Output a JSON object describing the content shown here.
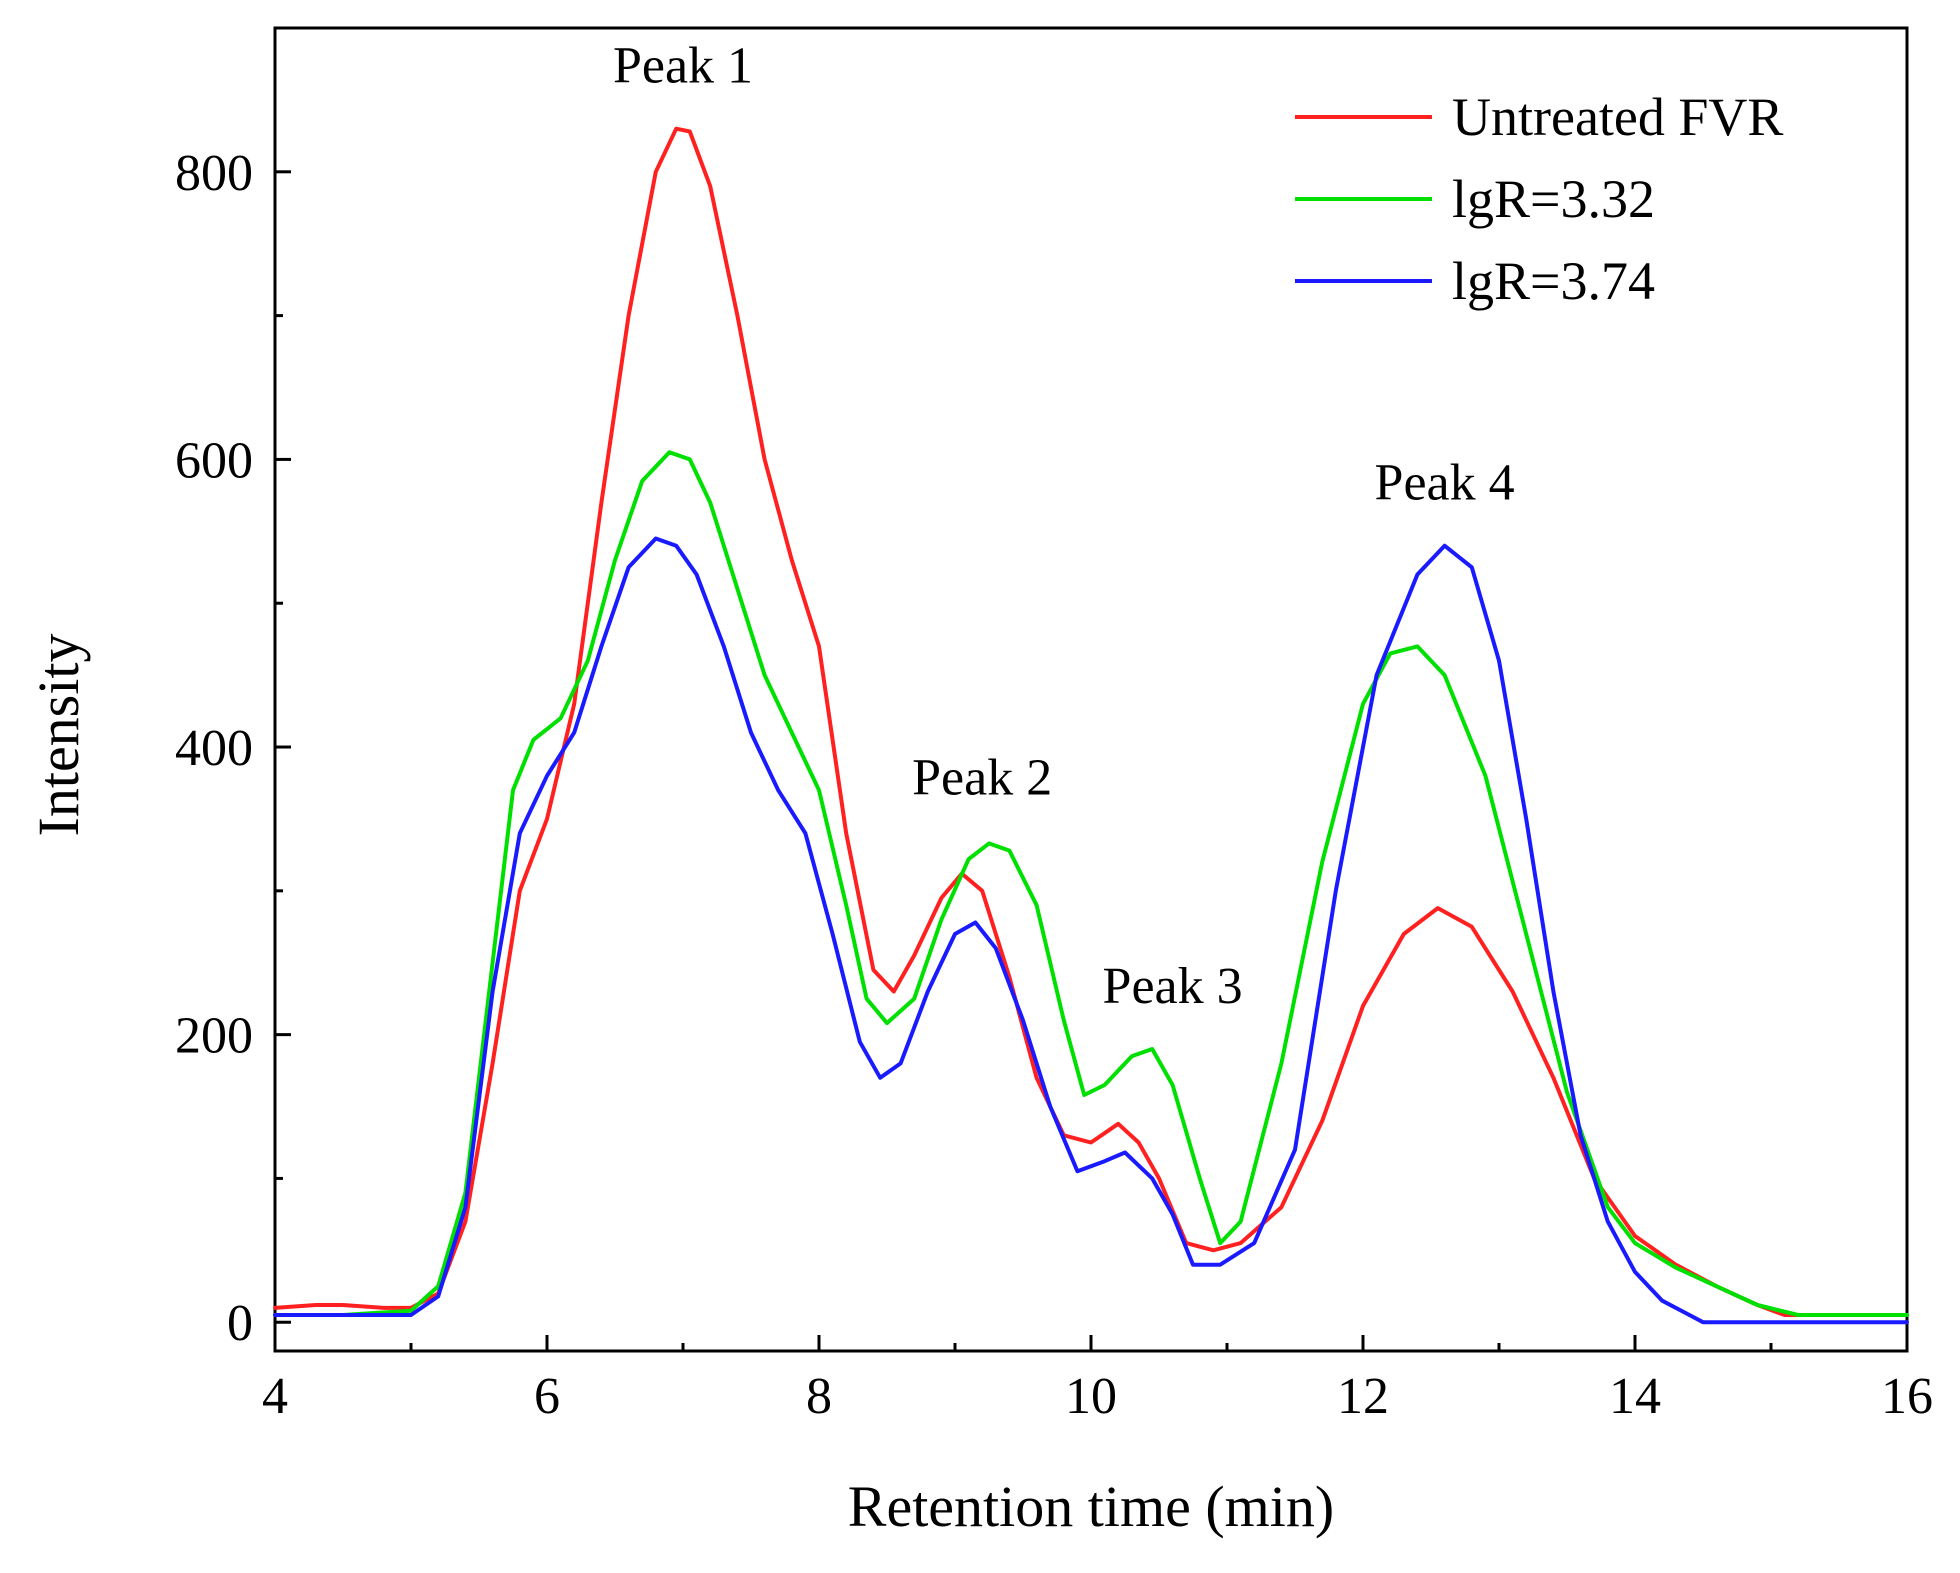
{
  "chart_data": {
    "type": "line",
    "title": "",
    "xlabel": "Retention time (min)",
    "ylabel": "Intensity",
    "xlim": [
      4,
      16
    ],
    "ylim": [
      -20,
      900
    ],
    "x_ticks": [
      4,
      6,
      8,
      10,
      12,
      14,
      16
    ],
    "y_ticks": [
      0,
      200,
      400,
      600,
      800
    ],
    "grid": false,
    "legend_position": "top-right",
    "series": [
      {
        "name": "Untreated FVR",
        "color": "#ff2020",
        "points": [
          [
            4.0,
            10
          ],
          [
            4.3,
            12
          ],
          [
            4.5,
            12
          ],
          [
            4.8,
            10
          ],
          [
            5.0,
            10
          ],
          [
            5.2,
            20
          ],
          [
            5.4,
            70
          ],
          [
            5.6,
            180
          ],
          [
            5.8,
            300
          ],
          [
            6.0,
            350
          ],
          [
            6.2,
            430
          ],
          [
            6.4,
            570
          ],
          [
            6.6,
            700
          ],
          [
            6.8,
            800
          ],
          [
            6.95,
            830
          ],
          [
            7.05,
            828
          ],
          [
            7.2,
            790
          ],
          [
            7.4,
            700
          ],
          [
            7.6,
            600
          ],
          [
            7.8,
            530
          ],
          [
            8.0,
            470
          ],
          [
            8.2,
            340
          ],
          [
            8.4,
            245
          ],
          [
            8.55,
            230
          ],
          [
            8.7,
            255
          ],
          [
            8.9,
            295
          ],
          [
            9.05,
            312
          ],
          [
            9.2,
            300
          ],
          [
            9.4,
            240
          ],
          [
            9.6,
            170
          ],
          [
            9.8,
            130
          ],
          [
            10.0,
            125
          ],
          [
            10.2,
            138
          ],
          [
            10.35,
            125
          ],
          [
            10.5,
            100
          ],
          [
            10.7,
            55
          ],
          [
            10.9,
            50
          ],
          [
            11.1,
            55
          ],
          [
            11.4,
            80
          ],
          [
            11.7,
            140
          ],
          [
            12.0,
            220
          ],
          [
            12.3,
            270
          ],
          [
            12.55,
            288
          ],
          [
            12.8,
            275
          ],
          [
            13.1,
            230
          ],
          [
            13.4,
            170
          ],
          [
            13.7,
            100
          ],
          [
            14.0,
            60
          ],
          [
            14.3,
            40
          ],
          [
            14.6,
            25
          ],
          [
            14.9,
            12
          ],
          [
            15.1,
            5
          ],
          [
            15.5,
            5
          ],
          [
            16.0,
            5
          ]
        ]
      },
      {
        "name": "lgR=3.32",
        "color": "#00e000",
        "points": [
          [
            4.0,
            5
          ],
          [
            4.5,
            5
          ],
          [
            5.0,
            8
          ],
          [
            5.2,
            25
          ],
          [
            5.4,
            90
          ],
          [
            5.6,
            250
          ],
          [
            5.75,
            370
          ],
          [
            5.9,
            405
          ],
          [
            6.1,
            420
          ],
          [
            6.3,
            460
          ],
          [
            6.5,
            530
          ],
          [
            6.7,
            585
          ],
          [
            6.9,
            605
          ],
          [
            7.05,
            600
          ],
          [
            7.2,
            570
          ],
          [
            7.4,
            510
          ],
          [
            7.6,
            450
          ],
          [
            7.8,
            410
          ],
          [
            8.0,
            370
          ],
          [
            8.2,
            290
          ],
          [
            8.35,
            225
          ],
          [
            8.5,
            208
          ],
          [
            8.7,
            225
          ],
          [
            8.9,
            280
          ],
          [
            9.1,
            322
          ],
          [
            9.25,
            333
          ],
          [
            9.4,
            328
          ],
          [
            9.6,
            290
          ],
          [
            9.8,
            210
          ],
          [
            9.95,
            158
          ],
          [
            10.1,
            165
          ],
          [
            10.3,
            185
          ],
          [
            10.45,
            190
          ],
          [
            10.6,
            165
          ],
          [
            10.8,
            100
          ],
          [
            10.95,
            55
          ],
          [
            11.1,
            70
          ],
          [
            11.4,
            180
          ],
          [
            11.7,
            320
          ],
          [
            12.0,
            430
          ],
          [
            12.2,
            465
          ],
          [
            12.4,
            470
          ],
          [
            12.6,
            450
          ],
          [
            12.9,
            380
          ],
          [
            13.2,
            270
          ],
          [
            13.5,
            160
          ],
          [
            13.8,
            80
          ],
          [
            14.0,
            55
          ],
          [
            14.3,
            38
          ],
          [
            14.6,
            25
          ],
          [
            14.9,
            12
          ],
          [
            15.2,
            5
          ],
          [
            15.6,
            5
          ],
          [
            16.0,
            5
          ]
        ]
      },
      {
        "name": "lgR=3.74",
        "color": "#1a1aff",
        "points": [
          [
            4.0,
            5
          ],
          [
            4.5,
            5
          ],
          [
            5.0,
            5
          ],
          [
            5.2,
            18
          ],
          [
            5.4,
            80
          ],
          [
            5.6,
            230
          ],
          [
            5.8,
            340
          ],
          [
            6.0,
            380
          ],
          [
            6.2,
            410
          ],
          [
            6.4,
            470
          ],
          [
            6.6,
            525
          ],
          [
            6.8,
            545
          ],
          [
            6.95,
            540
          ],
          [
            7.1,
            520
          ],
          [
            7.3,
            470
          ],
          [
            7.5,
            410
          ],
          [
            7.7,
            370
          ],
          [
            7.9,
            340
          ],
          [
            8.1,
            270
          ],
          [
            8.3,
            195
          ],
          [
            8.45,
            170
          ],
          [
            8.6,
            180
          ],
          [
            8.8,
            230
          ],
          [
            9.0,
            270
          ],
          [
            9.15,
            278
          ],
          [
            9.3,
            260
          ],
          [
            9.5,
            210
          ],
          [
            9.7,
            150
          ],
          [
            9.9,
            105
          ],
          [
            10.1,
            112
          ],
          [
            10.25,
            118
          ],
          [
            10.45,
            100
          ],
          [
            10.6,
            75
          ],
          [
            10.75,
            40
          ],
          [
            10.95,
            40
          ],
          [
            11.2,
            55
          ],
          [
            11.5,
            120
          ],
          [
            11.8,
            300
          ],
          [
            12.1,
            450
          ],
          [
            12.4,
            520
          ],
          [
            12.6,
            540
          ],
          [
            12.8,
            525
          ],
          [
            13.0,
            460
          ],
          [
            13.2,
            350
          ],
          [
            13.4,
            230
          ],
          [
            13.6,
            130
          ],
          [
            13.8,
            70
          ],
          [
            14.0,
            35
          ],
          [
            14.2,
            15
          ],
          [
            14.4,
            5
          ],
          [
            14.5,
            0
          ],
          [
            14.8,
            0
          ],
          [
            15.2,
            0
          ],
          [
            16.0,
            0
          ]
        ]
      }
    ],
    "annotations": [
      {
        "text": "Peak 1",
        "x": 7.0,
        "y": 862
      },
      {
        "text": "Peak 2",
        "x": 9.2,
        "y": 367
      },
      {
        "text": "Peak 3",
        "x": 10.6,
        "y": 222
      },
      {
        "text": "Peak 4",
        "x": 12.6,
        "y": 572
      }
    ]
  }
}
